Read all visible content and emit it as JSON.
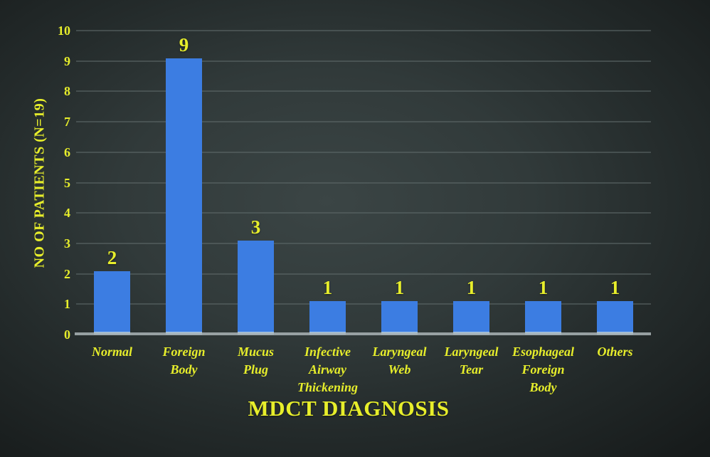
{
  "chart_data": {
    "type": "bar",
    "title": "MDCT DIAGNOSIS",
    "xlabel": "MDCT DIAGNOSIS",
    "ylabel": "NO OF PATIENTS (N=19)",
    "categories": [
      "Normal",
      "Foreign Body",
      "Mucus Plug",
      "Infective Airway Thickening",
      "Laryngeal Web",
      "Laryngeal Tear",
      "Esophageal Foreign Body",
      "Others"
    ],
    "values": [
      2,
      9,
      3,
      1,
      1,
      1,
      1,
      1
    ],
    "yticks": [
      0,
      1,
      2,
      3,
      4,
      5,
      6,
      7,
      8,
      9,
      10
    ],
    "ylim": [
      0,
      10
    ],
    "grid": true,
    "legend": "none",
    "bar_label_position": "above"
  },
  "theme": {
    "background_center": "#3b4545",
    "background_edge": "#171b1b",
    "bar_color": "#3c7de2",
    "bar_bottom_bevel": "#9cc2ea",
    "text_color": "#e7ee2b",
    "gridline_color": "#5e6a6a",
    "baseline_color": "#aab4b6"
  }
}
